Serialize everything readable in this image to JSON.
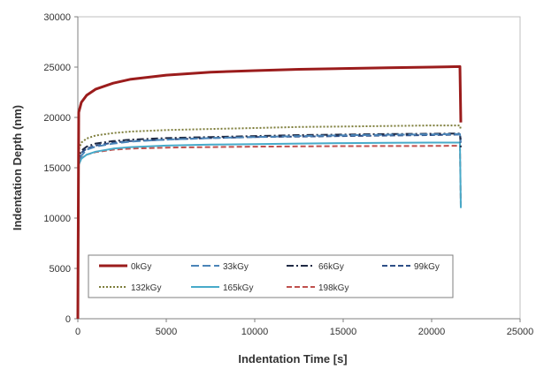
{
  "chart_data": {
    "type": "line",
    "xlabel": "Indentation Time [s]",
    "ylabel": "Indentation Depth (nm)",
    "xlim": [
      0,
      25000
    ],
    "ylim": [
      0,
      30000
    ],
    "xticks": [
      0,
      5000,
      10000,
      15000,
      20000,
      25000
    ],
    "yticks": [
      0,
      5000,
      10000,
      15000,
      20000,
      25000,
      30000
    ],
    "grid": false,
    "legend_position": "bottom-left",
    "series": [
      {
        "name": "0kGy",
        "color": "#9b1c1c",
        "dash": "solid",
        "x": [
          0,
          50,
          200,
          500,
          1000,
          2000,
          3000,
          5000,
          7500,
          10000,
          12500,
          15000,
          17500,
          20000,
          21600,
          21650
        ],
        "y": [
          0,
          20500,
          21500,
          22200,
          22800,
          23400,
          23800,
          24200,
          24500,
          24650,
          24780,
          24860,
          24930,
          25000,
          25050,
          19500
        ]
      },
      {
        "name": "33kGy",
        "color": "#4a84b8",
        "dash": "longdash",
        "x": [
          0,
          50,
          200,
          500,
          1000,
          2000,
          3000,
          5000,
          7500,
          10000,
          12500,
          15000,
          17500,
          20000,
          21600,
          21650
        ],
        "y": [
          0,
          15500,
          16200,
          16800,
          17100,
          17400,
          17600,
          17800,
          17950,
          18050,
          18150,
          18220,
          18280,
          18320,
          18350,
          17500
        ]
      },
      {
        "name": "66kGy",
        "color": "#1f2a44",
        "dash": "dashdot",
        "x": [
          0,
          50,
          200,
          500,
          1000,
          2000,
          3000,
          5000,
          7500,
          10000,
          12500,
          15000,
          17500,
          20000,
          21600,
          21650
        ],
        "y": [
          0,
          16000,
          16700,
          17100,
          17400,
          17650,
          17800,
          17950,
          18050,
          18150,
          18250,
          18300,
          18350,
          18380,
          18400,
          17000
        ]
      },
      {
        "name": "99kGy",
        "color": "#2e4f87",
        "dash": "dash",
        "x": [
          0,
          50,
          200,
          500,
          1000,
          2000,
          3000,
          5000,
          7500,
          10000,
          12500,
          15000,
          17500,
          20000,
          21600,
          21650
        ],
        "y": [
          0,
          15800,
          16500,
          16900,
          17200,
          17500,
          17650,
          17800,
          17950,
          18050,
          18100,
          18150,
          18200,
          18250,
          18300,
          17800
        ]
      },
      {
        "name": "132kGy",
        "color": "#7d7d3a",
        "dash": "dot",
        "x": [
          0,
          50,
          200,
          500,
          1000,
          2000,
          3000,
          5000,
          7500,
          10000,
          12500,
          15000,
          17500,
          20000,
          21600,
          21650
        ],
        "y": [
          0,
          16800,
          17500,
          17900,
          18200,
          18450,
          18600,
          18750,
          18850,
          18950,
          19050,
          19100,
          19150,
          19200,
          19200,
          18800
        ]
      },
      {
        "name": "165kGy",
        "color": "#47aac9",
        "dash": "solid",
        "x": [
          0,
          50,
          200,
          500,
          1000,
          2000,
          3000,
          5000,
          7500,
          10000,
          12500,
          15000,
          17500,
          20000,
          21600,
          21650
        ],
        "y": [
          0,
          15300,
          15900,
          16300,
          16600,
          16900,
          17050,
          17200,
          17300,
          17350,
          17400,
          17450,
          17480,
          17500,
          17500,
          11000
        ]
      },
      {
        "name": "198kGy",
        "color": "#c0504d",
        "dash": "dash",
        "x": [
          0,
          50,
          200,
          500,
          1000,
          2000,
          3000,
          5000,
          7500,
          10000,
          12500,
          15000,
          17500,
          20000,
          21600,
          21650
        ],
        "y": [
          0,
          15400,
          15950,
          16300,
          16550,
          16800,
          16900,
          17000,
          17050,
          17100,
          17120,
          17150,
          17160,
          17170,
          17180,
          11200
        ]
      }
    ]
  }
}
